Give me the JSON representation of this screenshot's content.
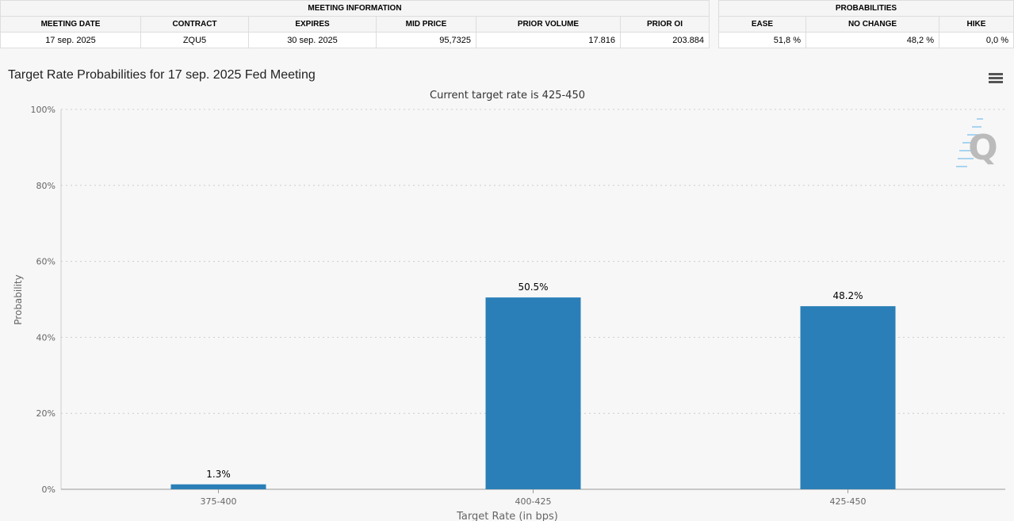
{
  "meeting_info": {
    "header": "MEETING INFORMATION",
    "columns": [
      "MEETING DATE",
      "CONTRACT",
      "EXPIRES",
      "MID PRICE",
      "PRIOR VOLUME",
      "PRIOR OI"
    ],
    "row": [
      "17 sep. 2025",
      "ZQU5",
      "30 sep. 2025",
      "95,7325",
      "17.816",
      "203.884"
    ]
  },
  "probabilities": {
    "header": "PROBABILITIES",
    "columns": [
      "EASE",
      "NO CHANGE",
      "HIKE"
    ],
    "row": [
      "51,8 %",
      "48,2 %",
      "0,0 %"
    ]
  },
  "chart_title": "Target Rate Probabilities for 17 sep. 2025 Fed Meeting",
  "menu_icon": "hamburger-menu-icon",
  "logo_letter": "Q",
  "chart_data": {
    "type": "bar",
    "subtitle": "Current target rate is 425-450",
    "xlabel": "Target Rate (in bps)",
    "ylabel": "Probability",
    "categories": [
      "375-400",
      "400-425",
      "425-450"
    ],
    "values": [
      1.3,
      50.5,
      48.2
    ],
    "data_labels": [
      "1.3%",
      "50.5%",
      "48.2%"
    ],
    "ylim": [
      0,
      100
    ],
    "yticks": [
      "0%",
      "20%",
      "40%",
      "60%",
      "80%",
      "100%"
    ],
    "grid": true,
    "bar_color": "#2b7fb8"
  }
}
